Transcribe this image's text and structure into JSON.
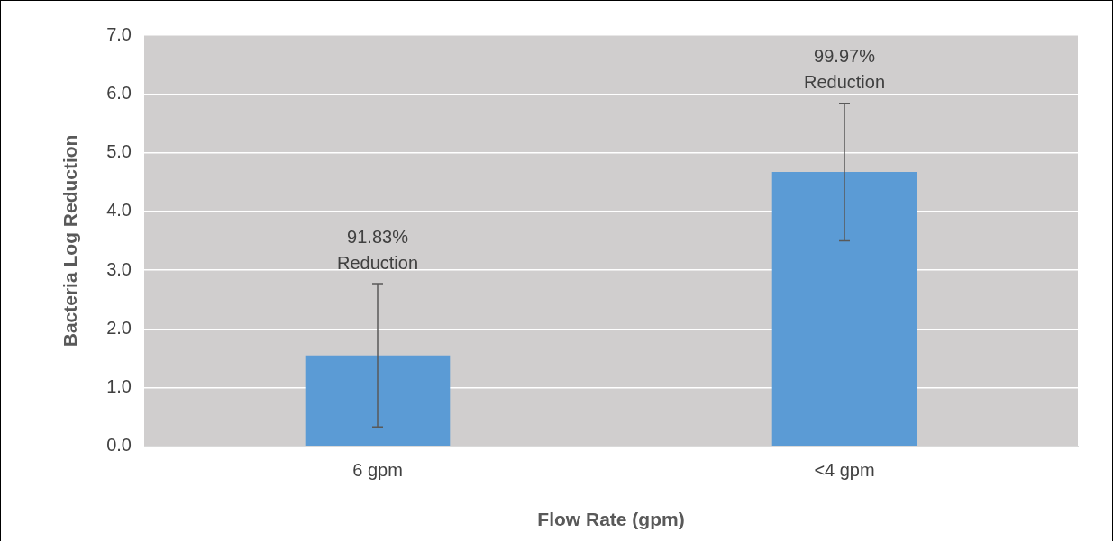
{
  "chart_data": {
    "type": "bar",
    "xlabel": "Flow Rate (gpm)",
    "ylabel": "Bacteria Log Reduction",
    "categories": [
      "6 gpm",
      "<4 gpm"
    ],
    "series": [
      {
        "color": "#5b9bd5",
        "values": [
          1.55,
          4.67
        ],
        "errors": [
          1.22,
          1.17
        ]
      }
    ],
    "ylim": [
      0,
      7
    ],
    "yticks": [
      {
        "value": 0,
        "label": "0.0"
      },
      {
        "value": 1,
        "label": "1.0"
      },
      {
        "value": 2,
        "label": "2.0"
      },
      {
        "value": 3,
        "label": "3.0"
      },
      {
        "value": 4,
        "label": "4.0"
      },
      {
        "value": 5,
        "label": "5.0"
      },
      {
        "value": 6,
        "label": "6.0"
      },
      {
        "value": 7,
        "label": "7.0"
      }
    ],
    "grid": "y",
    "legend": false,
    "annotations": [
      "91.83% Reduction",
      "99.97% Reduction"
    ]
  }
}
